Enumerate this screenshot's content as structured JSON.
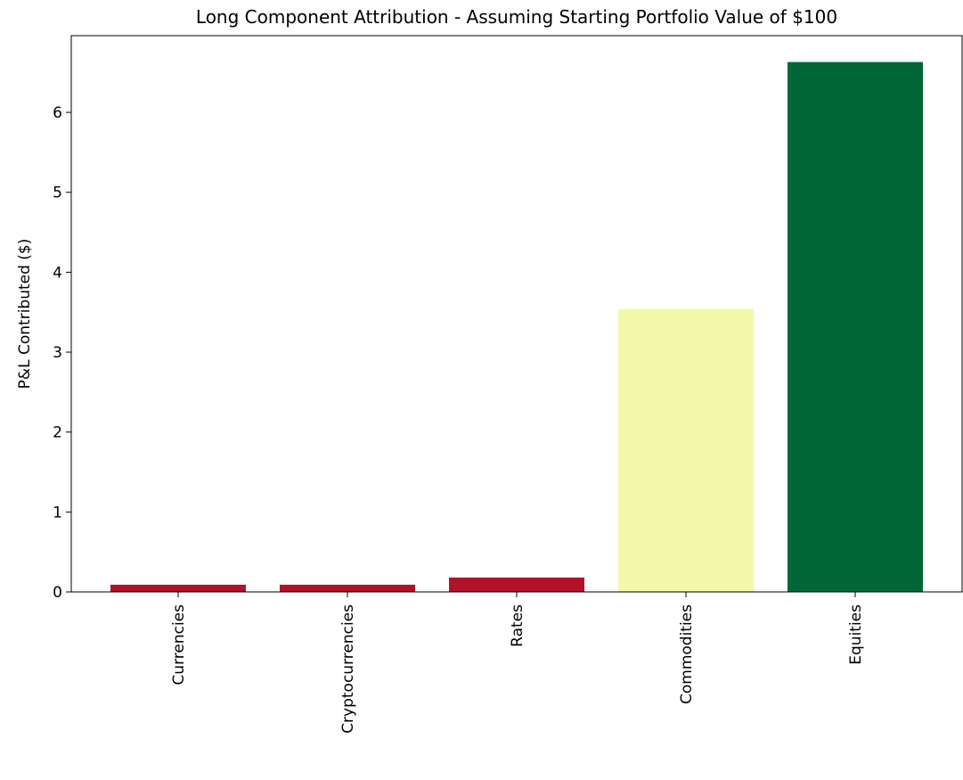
{
  "chart_data": {
    "type": "bar",
    "title": "Long Component Attribution - Assuming Starting Portfolio Value of $100",
    "y_label": "P&L Contributed ($)",
    "categories": [
      "Currencies",
      "Cryptocurrencies",
      "Rates",
      "Commodities",
      "Equities"
    ],
    "values": [
      0.09,
      0.09,
      0.18,
      3.54,
      6.63
    ],
    "colors": [
      "#b0122a",
      "#b0122a",
      "#b0122a",
      "#f1f9a9",
      "#006837"
    ],
    "ylim": [
      0,
      6.96
    ],
    "yticks": [
      0,
      1,
      2,
      3,
      4,
      5,
      6
    ]
  }
}
